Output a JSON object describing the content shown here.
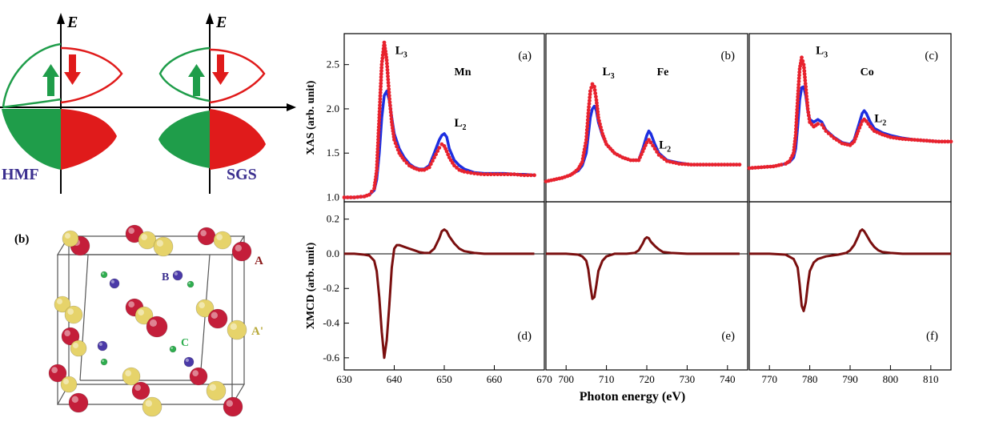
{
  "dos": {
    "e_label": "E",
    "hmf_label": "HMF",
    "sgs_label": "SGS",
    "colors": {
      "up": "#1f9d4a",
      "down": "#e01b1b",
      "axis": "#000000",
      "label": "#3b2f8f"
    }
  },
  "crystal": {
    "panel_label": "(b)",
    "site_a": "A",
    "site_a_prime": "A'",
    "site_b": "B",
    "site_c": "C",
    "colors": {
      "a": "#c41e3a",
      "a_prime": "#e6d36a",
      "b": "#4b3aa8",
      "c": "#2fae4f",
      "label_a": "#8b1a1a",
      "label_a_prime": "#b8a93a",
      "label_b": "#3b2f8f",
      "label_c": "#2fae4f"
    }
  },
  "chart_data": [
    {
      "type": "line",
      "panel": "(a)",
      "element": "Mn",
      "ylabel": "XAS (arb. unit)",
      "xlim": [
        630,
        670
      ],
      "ylim": [
        0.95,
        2.85
      ],
      "yticks": [
        1.0,
        1.5,
        2.0,
        2.5
      ],
      "edge_labels": [
        {
          "text": "L3",
          "x": 640.2,
          "y": 2.62
        },
        {
          "text": "L2",
          "x": 652.0,
          "y": 1.8
        }
      ],
      "series": [
        {
          "color": "#1d2fe0",
          "style": "solid",
          "x": [
            630,
            632,
            634,
            635,
            636,
            636.5,
            637,
            637.5,
            638,
            638.5,
            639,
            639.5,
            640,
            641,
            642,
            643,
            644,
            645,
            646,
            647,
            648,
            649,
            649.5,
            650,
            650.5,
            651,
            652,
            653,
            654,
            656,
            658,
            660,
            662,
            664,
            666,
            668
          ],
          "y": [
            1.0,
            1.0,
            1.01,
            1.03,
            1.08,
            1.2,
            1.5,
            1.9,
            2.15,
            2.2,
            2.1,
            1.9,
            1.72,
            1.55,
            1.45,
            1.38,
            1.34,
            1.32,
            1.32,
            1.36,
            1.5,
            1.65,
            1.7,
            1.72,
            1.68,
            1.55,
            1.42,
            1.36,
            1.32,
            1.28,
            1.27,
            1.27,
            1.27,
            1.26,
            1.26,
            1.25
          ]
        },
        {
          "color": "#e8222d",
          "style": "dots",
          "x": [
            630,
            632,
            634,
            635,
            636,
            636.5,
            637,
            637.5,
            638,
            638.5,
            639,
            639.5,
            640,
            641,
            642,
            643,
            644,
            645,
            646,
            647,
            648,
            649,
            649.5,
            650,
            650.5,
            651,
            652,
            653,
            654,
            656,
            658,
            660,
            662,
            664,
            666,
            668
          ],
          "y": [
            1.0,
            1.0,
            1.01,
            1.03,
            1.1,
            1.3,
            1.9,
            2.5,
            2.75,
            2.55,
            2.15,
            1.85,
            1.65,
            1.5,
            1.42,
            1.36,
            1.33,
            1.31,
            1.31,
            1.34,
            1.45,
            1.56,
            1.6,
            1.58,
            1.52,
            1.45,
            1.36,
            1.31,
            1.29,
            1.27,
            1.26,
            1.26,
            1.26,
            1.26,
            1.25,
            1.25
          ]
        }
      ]
    },
    {
      "type": "line",
      "panel": "(b)",
      "element": "Fe",
      "xlim": [
        695,
        745
      ],
      "ylim": [
        0.95,
        2.85
      ],
      "edge_labels": [
        {
          "text": "L3",
          "x": 709.0,
          "y": 2.38
        },
        {
          "text": "L2",
          "x": 723.0,
          "y": 1.55
        }
      ],
      "series": [
        {
          "color": "#1d2fe0",
          "style": "solid",
          "x": [
            695,
            697,
            699,
            701,
            702,
            703,
            704,
            705,
            705.5,
            706,
            706.5,
            707,
            707.5,
            708,
            709,
            710,
            712,
            714,
            716,
            718,
            719,
            720,
            720.5,
            721,
            722,
            723,
            725,
            728,
            731,
            734,
            737,
            740,
            743
          ],
          "y": [
            1.18,
            1.2,
            1.22,
            1.25,
            1.28,
            1.3,
            1.36,
            1.5,
            1.7,
            1.9,
            2.0,
            2.03,
            1.98,
            1.85,
            1.7,
            1.6,
            1.5,
            1.45,
            1.42,
            1.42,
            1.55,
            1.7,
            1.75,
            1.72,
            1.6,
            1.5,
            1.42,
            1.39,
            1.37,
            1.37,
            1.37,
            1.37,
            1.37
          ]
        },
        {
          "color": "#e8222d",
          "style": "dots",
          "x": [
            695,
            697,
            699,
            701,
            702,
            703,
            704,
            705,
            705.5,
            706,
            706.5,
            707,
            707.5,
            708,
            709,
            710,
            712,
            714,
            716,
            718,
            719,
            720,
            720.5,
            721,
            722,
            723,
            725,
            728,
            731,
            734,
            737,
            740,
            743
          ],
          "y": [
            1.18,
            1.2,
            1.22,
            1.25,
            1.28,
            1.32,
            1.4,
            1.65,
            1.95,
            2.2,
            2.28,
            2.25,
            2.1,
            1.9,
            1.72,
            1.6,
            1.5,
            1.45,
            1.42,
            1.42,
            1.52,
            1.62,
            1.65,
            1.62,
            1.55,
            1.48,
            1.41,
            1.38,
            1.37,
            1.37,
            1.37,
            1.37,
            1.37
          ]
        }
      ]
    },
    {
      "type": "line",
      "panel": "(c)",
      "element": "Co",
      "xlim": [
        765,
        815
      ],
      "ylim": [
        0.95,
        2.85
      ],
      "edge_labels": [
        {
          "text": "L3",
          "x": 781.5,
          "y": 2.62
        },
        {
          "text": "L2",
          "x": 796.0,
          "y": 1.85
        }
      ],
      "series": [
        {
          "color": "#1d2fe0",
          "style": "solid",
          "x": [
            765,
            768,
            771,
            773,
            774,
            775,
            776,
            776.5,
            777,
            777.5,
            778,
            778.5,
            779,
            779.5,
            780,
            781,
            782,
            783,
            784,
            786,
            788,
            790,
            791,
            792,
            793,
            793.5,
            794,
            795,
            796,
            798,
            800,
            803,
            806,
            809,
            812,
            815
          ],
          "y": [
            1.33,
            1.34,
            1.35,
            1.37,
            1.38,
            1.4,
            1.45,
            1.55,
            1.8,
            2.1,
            2.24,
            2.25,
            2.15,
            1.98,
            1.88,
            1.85,
            1.88,
            1.85,
            1.76,
            1.68,
            1.62,
            1.6,
            1.65,
            1.8,
            1.95,
            1.98,
            1.95,
            1.85,
            1.78,
            1.73,
            1.7,
            1.67,
            1.65,
            1.64,
            1.63,
            1.63
          ]
        },
        {
          "color": "#e8222d",
          "style": "dots",
          "x": [
            765,
            768,
            771,
            773,
            774,
            775,
            776,
            776.5,
            777,
            777.5,
            778,
            778.5,
            779,
            779.5,
            780,
            781,
            782,
            783,
            784,
            786,
            788,
            790,
            791,
            792,
            793,
            793.5,
            794,
            795,
            796,
            798,
            800,
            803,
            806,
            809,
            812,
            815
          ],
          "y": [
            1.33,
            1.34,
            1.35,
            1.37,
            1.38,
            1.41,
            1.5,
            1.7,
            2.1,
            2.45,
            2.58,
            2.5,
            2.25,
            2.0,
            1.85,
            1.8,
            1.83,
            1.82,
            1.75,
            1.67,
            1.61,
            1.59,
            1.63,
            1.75,
            1.86,
            1.88,
            1.86,
            1.8,
            1.75,
            1.71,
            1.68,
            1.66,
            1.65,
            1.64,
            1.63,
            1.63
          ]
        }
      ]
    },
    {
      "type": "line",
      "panel": "(d)",
      "ylabel": "XMCD (arb. unit)",
      "xlim": [
        630,
        670
      ],
      "ylim": [
        -0.67,
        0.3
      ],
      "xticks": [
        630,
        640,
        650,
        660,
        670
      ],
      "yticks": [
        0.2,
        0.0,
        -0.2,
        -0.4,
        -0.6
      ],
      "series": [
        {
          "color": "#7a0f0f",
          "style": "solid",
          "x": [
            630,
            632,
            634,
            635,
            636,
            636.5,
            637,
            637.5,
            638,
            638.5,
            639,
            639.5,
            640,
            640.5,
            641,
            642,
            643,
            644,
            645,
            646,
            647,
            648,
            649,
            649.5,
            650,
            650.5,
            651,
            652,
            653,
            654,
            656,
            658,
            660,
            664,
            668
          ],
          "y": [
            0,
            0,
            -0.005,
            -0.01,
            -0.04,
            -0.1,
            -0.25,
            -0.45,
            -0.6,
            -0.5,
            -0.3,
            -0.08,
            0.03,
            0.05,
            0.05,
            0.04,
            0.03,
            0.02,
            0.01,
            0.005,
            0.005,
            0.03,
            0.09,
            0.13,
            0.14,
            0.13,
            0.1,
            0.06,
            0.03,
            0.015,
            0.005,
            0,
            0,
            0,
            0
          ]
        }
      ]
    },
    {
      "type": "line",
      "panel": "(e)",
      "xlim": [
        695,
        745
      ],
      "ylim": [
        -0.67,
        0.3
      ],
      "xticks": [
        700,
        710,
        720,
        730,
        740
      ],
      "series": [
        {
          "color": "#7a0f0f",
          "style": "solid",
          "x": [
            695,
            700,
            703,
            704,
            705,
            705.5,
            706,
            706.5,
            707,
            707.5,
            708,
            709,
            710,
            712,
            715,
            717,
            718,
            719,
            719.5,
            720,
            720.5,
            721,
            722,
            723,
            724,
            726,
            730,
            735,
            740,
            743
          ],
          "y": [
            0,
            0,
            -0.005,
            -0.015,
            -0.04,
            -0.09,
            -0.18,
            -0.26,
            -0.25,
            -0.18,
            -0.1,
            -0.04,
            -0.015,
            0,
            0,
            0.005,
            0.02,
            0.06,
            0.085,
            0.095,
            0.09,
            0.07,
            0.045,
            0.025,
            0.01,
            0.005,
            0,
            0,
            0,
            0
          ]
        }
      ]
    },
    {
      "type": "line",
      "panel": "(f)",
      "xlim": [
        765,
        815
      ],
      "ylim": [
        -0.67,
        0.3
      ],
      "xticks": [
        770,
        780,
        790,
        800,
        810
      ],
      "series": [
        {
          "color": "#7a0f0f",
          "style": "solid",
          "x": [
            765,
            770,
            774,
            776,
            777,
            777.5,
            778,
            778.5,
            779,
            779.5,
            780,
            781,
            782,
            784,
            787,
            789,
            790,
            791,
            792,
            792.5,
            793,
            793.5,
            794,
            795,
            796,
            797,
            798,
            800,
            803,
            808,
            815
          ],
          "y": [
            0,
            0,
            -0.005,
            -0.03,
            -0.08,
            -0.18,
            -0.3,
            -0.33,
            -0.28,
            -0.18,
            -0.1,
            -0.05,
            -0.03,
            -0.015,
            -0.005,
            0.005,
            0.02,
            0.05,
            0.1,
            0.13,
            0.14,
            0.13,
            0.11,
            0.07,
            0.04,
            0.02,
            0.01,
            0.005,
            0,
            0,
            0
          ]
        }
      ]
    }
  ],
  "xlabel": "Photon energy (eV)"
}
